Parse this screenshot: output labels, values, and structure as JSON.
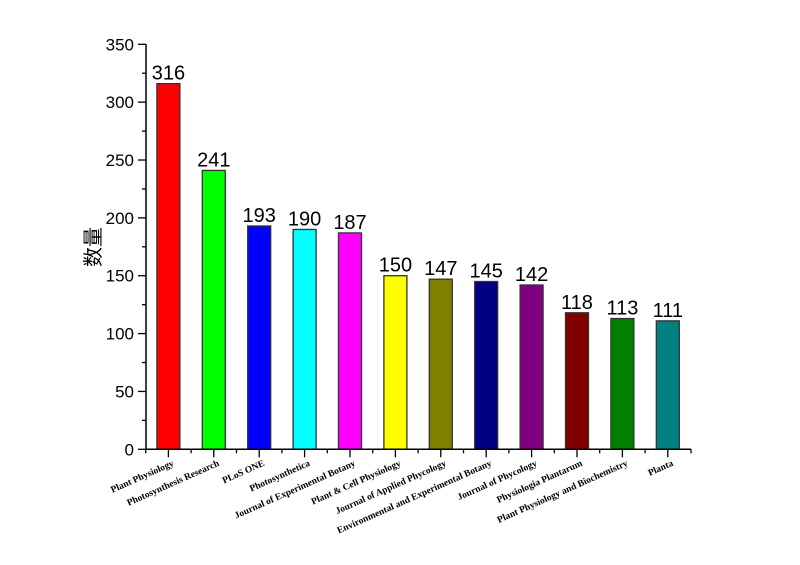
{
  "chart_data": {
    "type": "bar",
    "title": "",
    "xlabel": "",
    "ylabel": "数量",
    "ylim": [
      0,
      350
    ],
    "yticks": [
      0,
      50,
      100,
      150,
      200,
      250,
      300,
      350
    ],
    "grid": false,
    "legend": "none",
    "categories": [
      "Plant Physiology",
      "Photosynthesis Research",
      "PLoS ONE",
      "Photosynthetica",
      "Journal of Experimental Botany",
      "Plant & Cell Physiology",
      "Journal of Applied Phycology",
      "Environmental and Experimental Botany",
      "Journal of Phycology",
      "Physiologia Plantarum",
      "Plant Physiology and Biochemistry",
      "Planta"
    ],
    "values": [
      316,
      241,
      193,
      190,
      187,
      150,
      147,
      145,
      142,
      118,
      113,
      111
    ],
    "colors": [
      "#ff0000",
      "#00ff00",
      "#0000ff",
      "#00ffff",
      "#ff00ff",
      "#ffff00",
      "#808000",
      "#000080",
      "#800080",
      "#800000",
      "#008000",
      "#008080"
    ],
    "data_labels": [
      "316",
      "241",
      "193",
      "190",
      "187",
      "150",
      "147",
      "145",
      "142",
      "118",
      "113",
      "111"
    ]
  }
}
